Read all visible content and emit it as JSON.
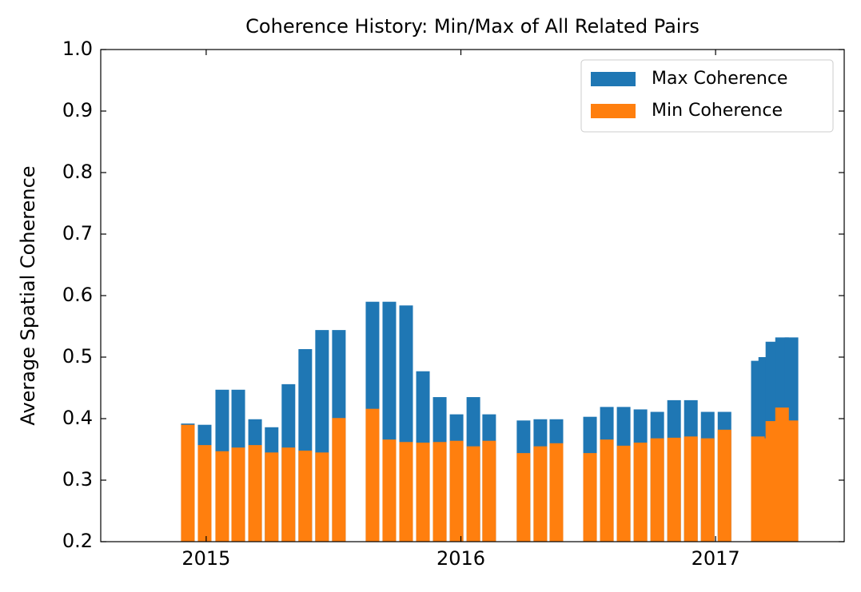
{
  "chart_data": {
    "type": "bar",
    "title": "Coherence History: Min/Max of All Related Pairs",
    "y_label": "Average Spatial Coherence",
    "x": [
      2014.928,
      2014.994,
      2015.063,
      2015.126,
      2015.192,
      2015.257,
      2015.323,
      2015.389,
      2015.455,
      2015.521,
      2015.653,
      2015.719,
      2015.785,
      2015.851,
      2015.917,
      2015.983,
      2016.049,
      2016.111,
      2016.246,
      2016.312,
      2016.375,
      2016.507,
      2016.573,
      2016.639,
      2016.705,
      2016.771,
      2016.837,
      2016.903,
      2016.969,
      2017.035,
      2017.166,
      2017.195,
      2017.223,
      2017.261,
      2017.298
    ],
    "series": [
      {
        "name": "Max Coherence",
        "color": "#1f77b4",
        "values": [
          0.392,
          0.39,
          0.447,
          0.447,
          0.399,
          0.386,
          0.456,
          0.513,
          0.544,
          0.544,
          0.59,
          0.59,
          0.584,
          0.477,
          0.435,
          0.407,
          0.435,
          0.407,
          0.397,
          0.399,
          0.399,
          0.403,
          0.419,
          0.419,
          0.415,
          0.411,
          0.43,
          0.43,
          0.411,
          0.411,
          0.494,
          0.5,
          0.525,
          0.532,
          0.532
        ]
      },
      {
        "name": "Min Coherence",
        "color": "#ff7f0e",
        "values": [
          0.39,
          0.357,
          0.347,
          0.353,
          0.357,
          0.345,
          0.353,
          0.348,
          0.345,
          0.401,
          0.416,
          0.366,
          0.362,
          0.361,
          0.362,
          0.364,
          0.355,
          0.364,
          0.344,
          0.355,
          0.36,
          0.344,
          0.366,
          0.356,
          0.361,
          0.368,
          0.369,
          0.371,
          0.368,
          0.382,
          0.371,
          0.368,
          0.396,
          0.418,
          0.397
        ]
      }
    ],
    "xlim": [
      2014.586,
      2017.505
    ],
    "xticks": [
      2015,
      2016,
      2017
    ],
    "ylim": [
      0.2,
      1
    ],
    "yticks": [
      0.2,
      0.3,
      0.4,
      0.5,
      0.6,
      0.7,
      0.8,
      0.9,
      {
        "value": 1,
        "label": "1.0"
      }
    ],
    "legend": "upper right",
    "grid": false
  }
}
